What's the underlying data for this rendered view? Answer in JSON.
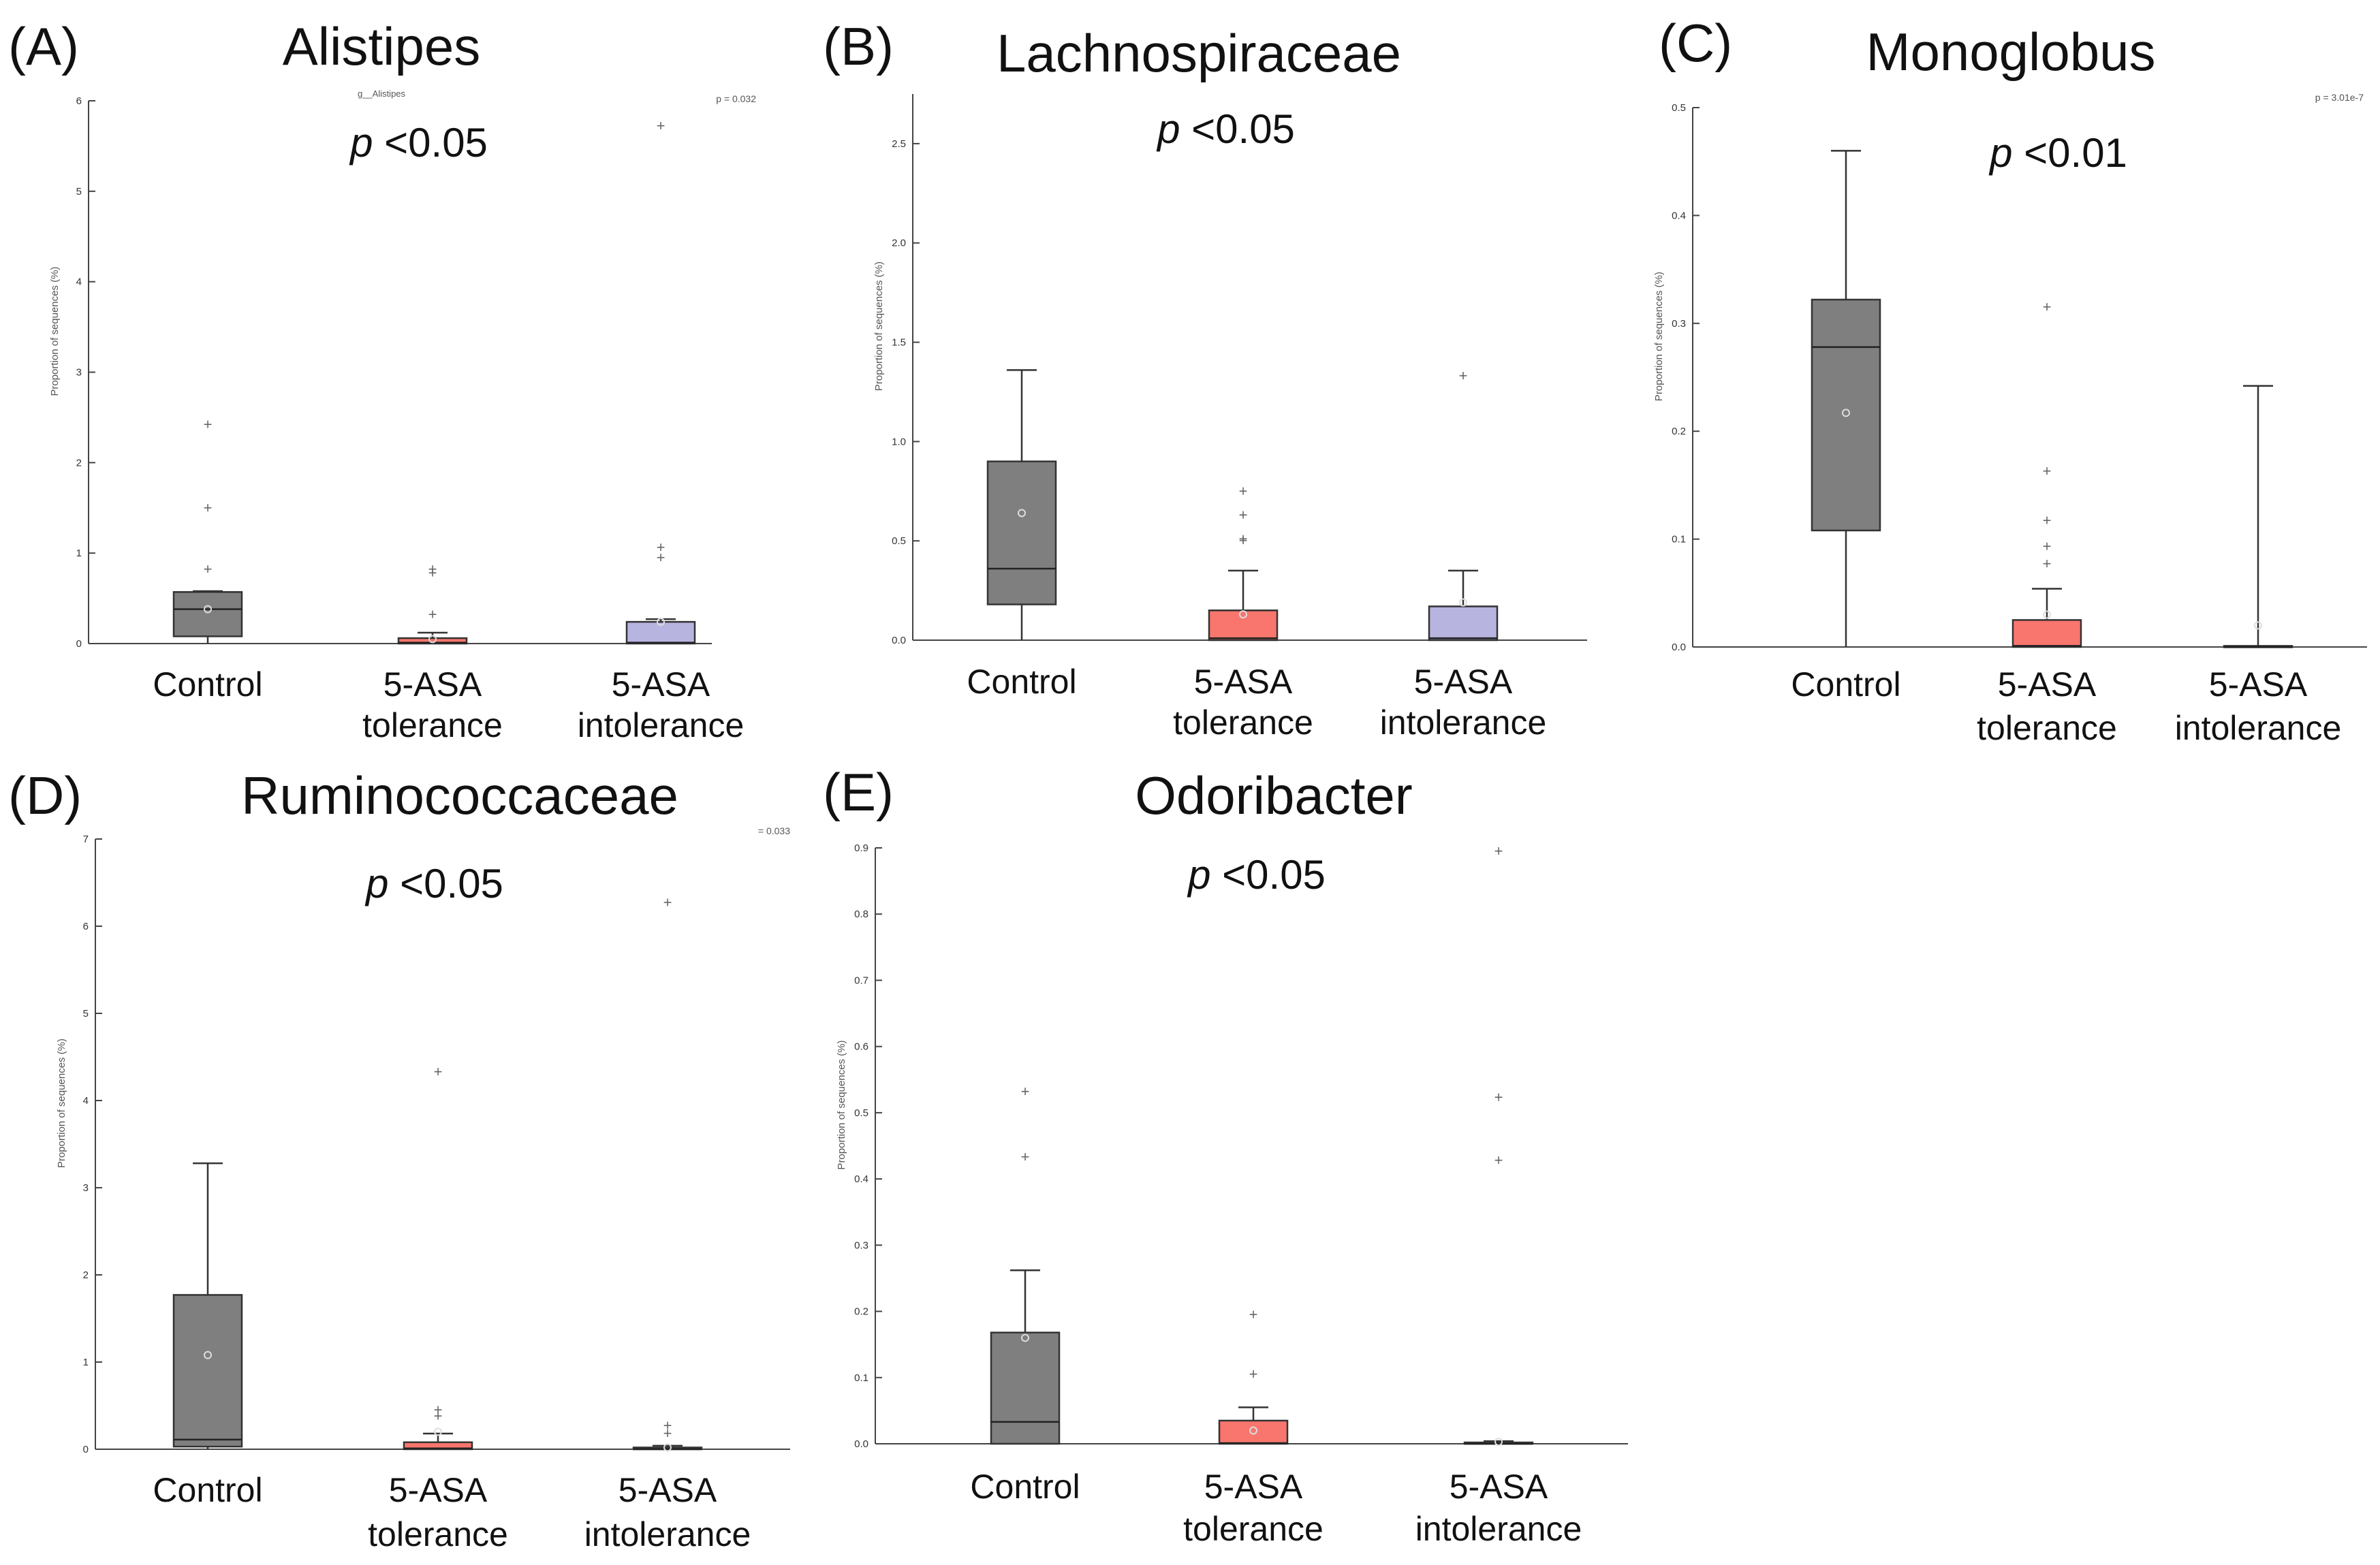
{
  "figure": {
    "ylabel": "Proportion of sequences (%)",
    "box_colors": {
      "control": "#7f7f7f",
      "tolerance": "#f8766d",
      "intolerance": "#b8b4e0"
    }
  },
  "chart_data": [
    {
      "type": "box",
      "panel": "(A)",
      "title": "Alistipes",
      "subtitle": "g__Alistipes",
      "p_label": "p <0.05",
      "p_value": "p = 0.032",
      "ylabel": "Proportion of sequences (%)",
      "ylim": [
        0,
        6
      ],
      "yticks": [
        0,
        1,
        2,
        3,
        4,
        5,
        6
      ],
      "groups": [
        {
          "name": "Control",
          "label": [
            "Control"
          ],
          "color": "#7f7f7f",
          "q1": 0.08,
          "median": 0.38,
          "q3": 0.57,
          "whisker_low": 0,
          "whisker_high": 0.58,
          "mean": 0.38,
          "outliers": [
            0.82,
            1.5,
            2.42
          ]
        },
        {
          "name": "5-ASA tolerance",
          "label": [
            "5-ASA",
            "tolerance"
          ],
          "color": "#f8766d",
          "q1": 0,
          "median": 0.01,
          "q3": 0.06,
          "whisker_low": 0,
          "whisker_high": 0.12,
          "mean": 0.05,
          "outliers": [
            0.32,
            0.78,
            0.82
          ]
        },
        {
          "name": "5-ASA intolerance",
          "label": [
            "5-ASA",
            "intolerance"
          ],
          "color": "#b8b4e0",
          "q1": 0,
          "median": 0.01,
          "q3": 0.24,
          "whisker_low": 0,
          "whisker_high": 0.27,
          "mean": 0.24,
          "outliers": [
            0.95,
            1.06,
            5.72
          ]
        }
      ]
    },
    {
      "type": "box",
      "panel": "(B)",
      "title": "Lachnospiraceae",
      "subtitle": "",
      "p_label": "p <0.05",
      "p_value": "",
      "ylabel": "Proportion of sequences (%)",
      "ylim": [
        0,
        2.75
      ],
      "yticks": [
        0.0,
        0.5,
        1.0,
        1.5,
        2.0,
        2.5
      ],
      "groups": [
        {
          "name": "Control",
          "label": [
            "Control"
          ],
          "color": "#7f7f7f",
          "q1": 0.18,
          "median": 0.36,
          "q3": 0.9,
          "whisker_low": 0,
          "whisker_high": 1.36,
          "mean": 0.64,
          "outliers": []
        },
        {
          "name": "5-ASA tolerance",
          "label": [
            "5-ASA",
            "tolerance"
          ],
          "color": "#f8766d",
          "q1": 0,
          "median": 0.01,
          "q3": 0.15,
          "whisker_low": 0,
          "whisker_high": 0.35,
          "mean": 0.13,
          "outliers": [
            0.5,
            0.51,
            0.63,
            0.75
          ]
        },
        {
          "name": "5-ASA intolerance",
          "label": [
            "5-ASA",
            "intolerance"
          ],
          "color": "#b8b4e0",
          "q1": 0,
          "median": 0.01,
          "q3": 0.17,
          "whisker_low": 0,
          "whisker_high": 0.35,
          "mean": 0.19,
          "outliers": [
            1.33
          ]
        }
      ]
    },
    {
      "type": "box",
      "panel": "(C)",
      "title": "Monoglobus",
      "subtitle": "",
      "p_label": "p <0.01",
      "p_value": "p = 3.01e-7",
      "ylabel": "Proportion of sequences (%)",
      "ylim": [
        0,
        0.5
      ],
      "yticks": [
        0.0,
        0.1,
        0.2,
        0.3,
        0.4,
        0.5
      ],
      "groups": [
        {
          "name": "Control",
          "label": [
            "Control"
          ],
          "color": "#7f7f7f",
          "q1": 0.108,
          "median": 0.278,
          "q3": 0.322,
          "whisker_low": 0,
          "whisker_high": 0.46,
          "mean": 0.217,
          "outliers": []
        },
        {
          "name": "5-ASA tolerance",
          "label": [
            "5-ASA",
            "tolerance"
          ],
          "color": "#f8766d",
          "q1": 0,
          "median": 0.001,
          "q3": 0.025,
          "whisker_low": 0,
          "whisker_high": 0.054,
          "mean": 0.03,
          "outliers": [
            0.077,
            0.093,
            0.117,
            0.163,
            0.315
          ]
        },
        {
          "name": "5-ASA intolerance",
          "label": [
            "5-ASA",
            "intolerance"
          ],
          "color": "#b8b4e0",
          "q1": 0,
          "median": 0,
          "q3": 0.001,
          "whisker_low": 0,
          "whisker_high": 0.242,
          "mean": 0.02,
          "outliers": []
        }
      ]
    },
    {
      "type": "box",
      "panel": "(D)",
      "title": "Ruminococcaceae",
      "subtitle": "",
      "p_label": "p <0.05",
      "p_value": "= 0.033",
      "ylabel": "Proportion of sequences (%)",
      "ylim": [
        0,
        7
      ],
      "yticks": [
        0,
        1,
        2,
        3,
        4,
        5,
        6,
        7
      ],
      "groups": [
        {
          "name": "Control",
          "label": [
            "Control"
          ],
          "color": "#7f7f7f",
          "q1": 0.03,
          "median": 0.11,
          "q3": 1.77,
          "whisker_low": 0,
          "whisker_high": 3.28,
          "mean": 1.08,
          "outliers": []
        },
        {
          "name": "5-ASA tolerance",
          "label": [
            "5-ASA",
            "tolerance"
          ],
          "color": "#f8766d",
          "q1": 0,
          "median": 0.01,
          "q3": 0.08,
          "whisker_low": 0,
          "whisker_high": 0.18,
          "mean": 0.2,
          "outliers": [
            0.38,
            0.45,
            4.33
          ]
        },
        {
          "name": "5-ASA intolerance",
          "label": [
            "5-ASA",
            "intolerance"
          ],
          "color": "#b8b4e0",
          "q1": 0,
          "median": 0,
          "q3": 0.02,
          "whisker_low": 0,
          "whisker_high": 0.04,
          "mean": 0.02,
          "outliers": [
            0.18,
            0.27,
            6.27
          ]
        }
      ]
    },
    {
      "type": "box",
      "panel": "(E)",
      "title": "Odoribacter",
      "subtitle": "",
      "p_label": "p <0.05",
      "p_value": "",
      "ylabel": "Proportion of sequences (%)",
      "ylim": [
        0,
        0.9
      ],
      "yticks": [
        0.0,
        0.1,
        0.2,
        0.3,
        0.4,
        0.5,
        0.6,
        0.7,
        0.8,
        0.9
      ],
      "groups": [
        {
          "name": "Control",
          "label": [
            "Control"
          ],
          "color": "#7f7f7f",
          "q1": 0,
          "median": 0.033,
          "q3": 0.168,
          "whisker_low": 0,
          "whisker_high": 0.262,
          "mean": 0.16,
          "outliers": [
            0.433,
            0.532
          ]
        },
        {
          "name": "5-ASA tolerance",
          "label": [
            "5-ASA",
            "tolerance"
          ],
          "color": "#f8766d",
          "q1": 0,
          "median": 0.001,
          "q3": 0.035,
          "whisker_low": 0,
          "whisker_high": 0.055,
          "mean": 0.02,
          "outliers": [
            0.105,
            0.195
          ]
        },
        {
          "name": "5-ASA intolerance",
          "label": [
            "5-ASA",
            "intolerance"
          ],
          "color": "#b8b4e0",
          "q1": 0,
          "median": 0,
          "q3": 0.002,
          "whisker_low": 0,
          "whisker_high": 0.004,
          "mean": 0.003,
          "outliers": [
            0.428,
            0.523,
            0.895
          ]
        }
      ]
    }
  ]
}
